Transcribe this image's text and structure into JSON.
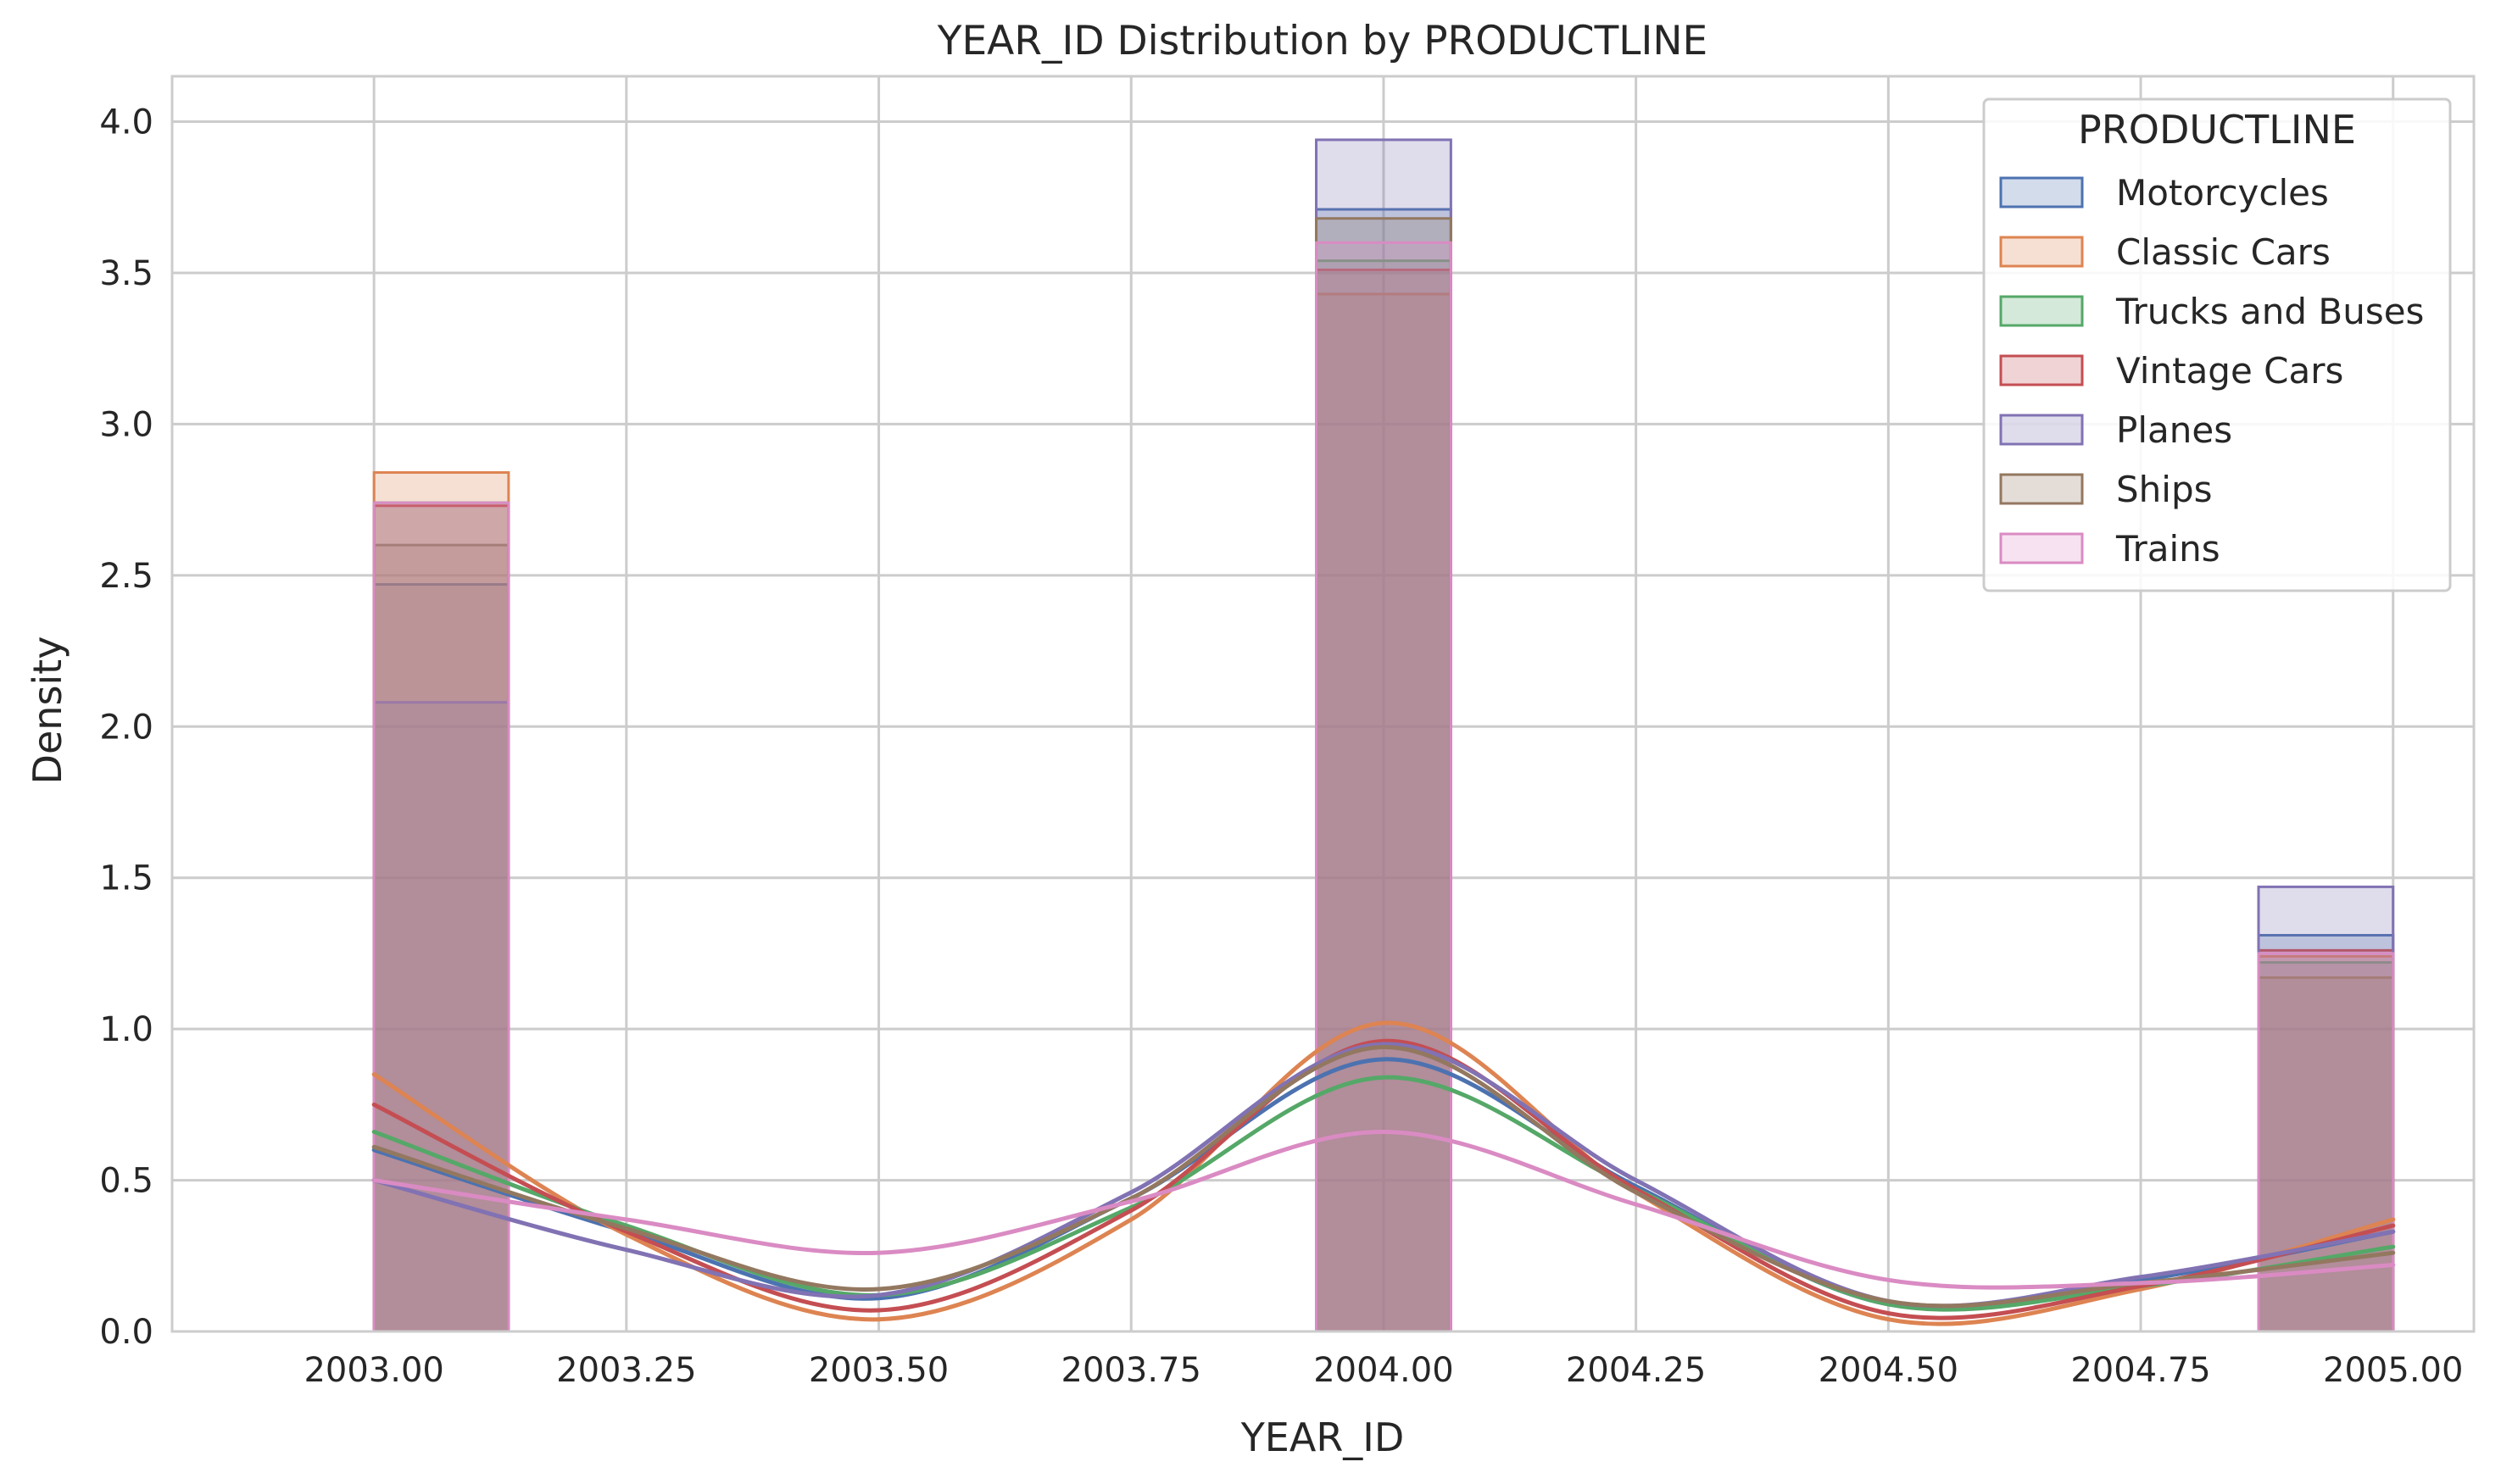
{
  "chart_data": {
    "type": "histogram+kde",
    "title": "YEAR_ID Distribution by PRODUCTLINE",
    "xlabel": "YEAR_ID",
    "ylabel": "Density",
    "xlim": [
      2002.8,
      2005.08
    ],
    "ylim": [
      0,
      4.15
    ],
    "xticks": [
      2003.0,
      2003.25,
      2003.5,
      2003.75,
      2004.0,
      2004.25,
      2004.5,
      2004.75,
      2005.0
    ],
    "xtick_labels": [
      "2003.00",
      "2003.25",
      "2003.50",
      "2003.75",
      "2004.00",
      "2004.25",
      "2004.50",
      "2004.75",
      "2005.00"
    ],
    "yticks": [
      0,
      0.5,
      1.0,
      1.5,
      2.0,
      2.5,
      3.0,
      3.5,
      4.0
    ],
    "ytick_labels": [
      "0.0",
      "0.5",
      "1.0",
      "1.5",
      "2.0",
      "2.5",
      "3.0",
      "3.5",
      "4.0"
    ],
    "grid": true,
    "legend": {
      "title": "PRODUCTLINE",
      "placement": "top-right"
    },
    "bins": [
      [
        2003.0,
        2003.1333
      ],
      [
        2003.9333,
        2004.0667
      ],
      [
        2004.8667,
        2005.0
      ]
    ],
    "kde_x": [
      2003.0,
      2003.25,
      2003.5,
      2003.75,
      2004.0,
      2004.25,
      2004.5,
      2004.75,
      2005.0
    ],
    "series": [
      {
        "name": "Motorcycles",
        "color": "#4c72b0",
        "density": [
          2.47,
          3.71,
          1.31
        ],
        "kde": [
          0.6,
          0.33,
          0.11,
          0.44,
          0.9,
          0.48,
          0.09,
          0.17,
          0.33
        ]
      },
      {
        "name": "Classic Cars",
        "color": "#dd8452",
        "density": [
          2.84,
          3.43,
          1.24
        ],
        "kde": [
          0.85,
          0.32,
          0.04,
          0.37,
          1.02,
          0.46,
          0.04,
          0.14,
          0.37
        ]
      },
      {
        "name": "Trucks and Buses",
        "color": "#55a868",
        "density": [
          2.74,
          3.54,
          1.22
        ],
        "kde": [
          0.66,
          0.35,
          0.12,
          0.41,
          0.84,
          0.47,
          0.09,
          0.15,
          0.28
        ]
      },
      {
        "name": "Vintage Cars",
        "color": "#c44e52",
        "density": [
          2.73,
          3.51,
          1.26
        ],
        "kde": [
          0.75,
          0.33,
          0.07,
          0.4,
          0.96,
          0.47,
          0.06,
          0.15,
          0.35
        ]
      },
      {
        "name": "Planes",
        "color": "#8172b3",
        "density": [
          2.08,
          3.94,
          1.47
        ],
        "kde": [
          0.5,
          0.27,
          0.12,
          0.46,
          0.95,
          0.5,
          0.1,
          0.18,
          0.33
        ]
      },
      {
        "name": "Ships",
        "color": "#937860",
        "density": [
          2.6,
          3.68,
          1.17
        ],
        "kde": [
          0.61,
          0.34,
          0.14,
          0.44,
          0.94,
          0.46,
          0.1,
          0.16,
          0.26
        ]
      },
      {
        "name": "Trains",
        "color": "#da8bc3",
        "density": [
          2.74,
          3.6,
          1.25
        ],
        "kde": [
          0.5,
          0.37,
          0.26,
          0.43,
          0.66,
          0.42,
          0.17,
          0.16,
          0.22
        ]
      }
    ]
  }
}
